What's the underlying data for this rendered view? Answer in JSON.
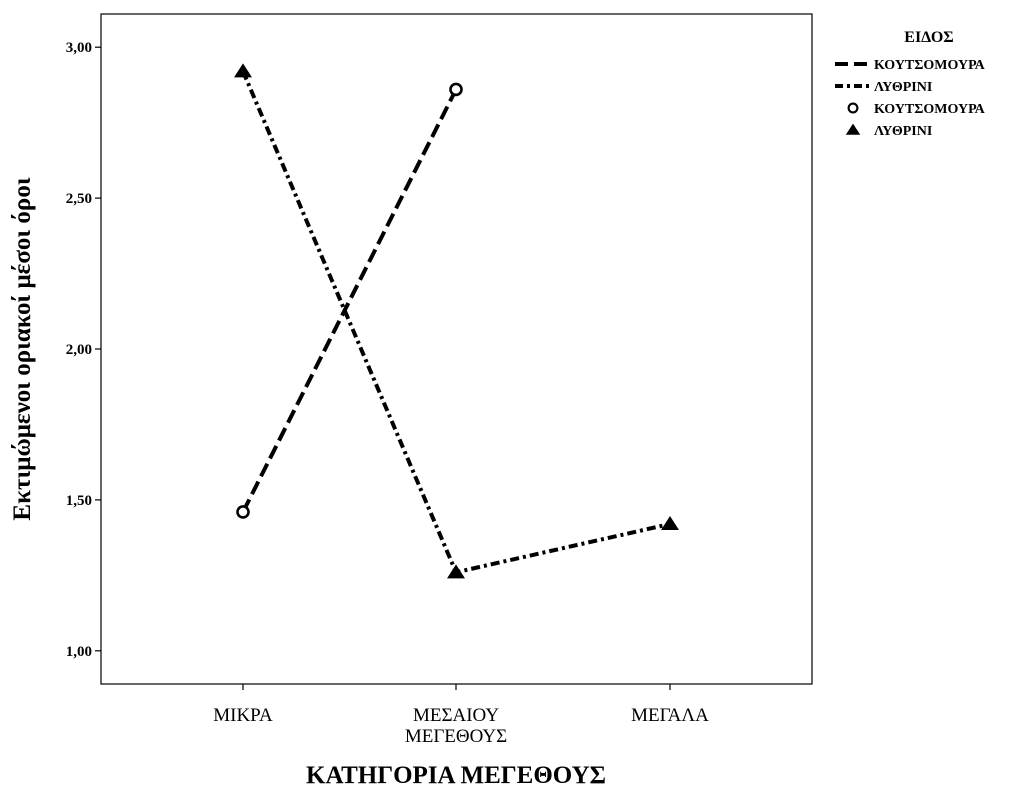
{
  "chart_data": {
    "type": "line",
    "xlabel": "ΚΑΤΗΓΟΡΙΑ ΜΕΓΕΘΟΥΣ",
    "ylabel": "Εκτιμώμενοι οριακοί μέσοι όροι",
    "categories": [
      [
        "ΜΙΚΡΑ"
      ],
      [
        "ΜΕΣΑΙΟΥ",
        "ΜΕΓΕΘΟΥΣ"
      ],
      [
        "ΜΕΓΑΛΑ"
      ]
    ],
    "ylim": [
      0.89,
      3.11
    ],
    "yticks": [
      "1,00",
      "1,50",
      "2,00",
      "2,50",
      "3,00"
    ],
    "ytick_values": [
      1.0,
      1.5,
      2.0,
      2.5,
      3.0
    ],
    "grid": false,
    "legend": {
      "title": "ΕΙΔΟΣ",
      "placement": "top-right",
      "entries": [
        {
          "label": "ΚΟΥΤΣΟΜΟΥΡΑ",
          "kind": "line",
          "series": 0
        },
        {
          "label": "ΛΥΘΡΙΝΙ",
          "kind": "line",
          "series": 1
        },
        {
          "label": "ΚΟΥΤΣΟΜΟΥΡΑ",
          "kind": "marker",
          "series": 0
        },
        {
          "label": "ΛΥΘΡΙΝΙ",
          "kind": "marker",
          "series": 1
        }
      ]
    },
    "series": [
      {
        "name": "ΚΟΥΤΣΟΜΟΥΡΑ",
        "values": [
          1.46,
          2.86,
          null
        ],
        "marker": "circle",
        "dash": "dash",
        "color": "#000000"
      },
      {
        "name": "ΛΥΘΡΙΝΙ",
        "values": [
          2.92,
          1.26,
          1.42
        ],
        "marker": "triangle",
        "dash": "dashdot",
        "color": "#000000"
      }
    ]
  }
}
